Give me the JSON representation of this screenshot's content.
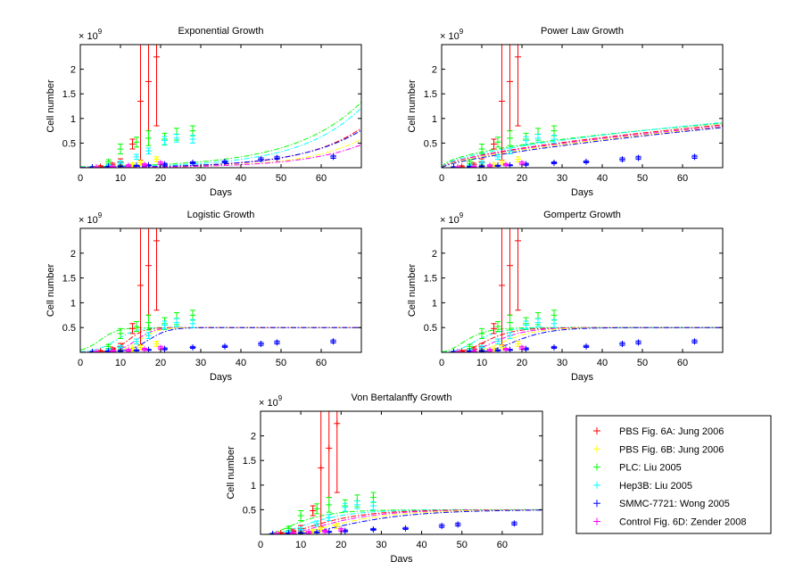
{
  "figure": {
    "series_legend": [
      {
        "label": "PBS Fig. 6A: Jung 2006",
        "color": "#ff0000"
      },
      {
        "label": "PBS Fig. 6B: Jung 2006",
        "color": "#ffff00"
      },
      {
        "label": "PLC: Liu 2005",
        "color": "#00ff00"
      },
      {
        "label": "Hep3B: Liu 2005",
        "color": "#00ffff"
      },
      {
        "label": "SMMC-7721: Wong 2005",
        "color": "#0000ff"
      },
      {
        "label": "Control Fig. 6D: Zender 2008",
        "color": "#ff00ff"
      }
    ],
    "y_multiplier_base": "× 10",
    "y_multiplier_exp": "9"
  },
  "chart_data": [
    {
      "type": "scatter",
      "title": "Exponential Growth",
      "xlabel": "Days",
      "ylabel": "Cell number",
      "xlim": [
        0,
        70
      ],
      "ylim": [
        0,
        2.5
      ],
      "xticks": [
        0,
        10,
        20,
        30,
        40,
        50,
        60
      ],
      "yticks": [
        0.5,
        1,
        1.5,
        2
      ],
      "ytick_labels": [
        "0.5",
        "1",
        "1.5",
        "2"
      ],
      "grid": false,
      "model": "exponential"
    },
    {
      "type": "scatter",
      "title": "Power Law Growth",
      "xlabel": "Days",
      "ylabel": "Cell number",
      "xlim": [
        0,
        70
      ],
      "ylim": [
        0,
        2.5
      ],
      "xticks": [
        0,
        10,
        20,
        30,
        40,
        50,
        60
      ],
      "yticks": [
        0.5,
        1,
        1.5,
        2
      ],
      "ytick_labels": [
        "0.5",
        "1",
        "1.5",
        "2"
      ],
      "grid": false,
      "model": "power"
    },
    {
      "type": "scatter",
      "title": "Logistic Growth",
      "xlabel": "Days",
      "ylabel": "Cell number",
      "xlim": [
        0,
        70
      ],
      "ylim": [
        0,
        2.5
      ],
      "xticks": [
        0,
        10,
        20,
        30,
        40,
        50,
        60
      ],
      "yticks": [
        0.5,
        1,
        1.5,
        2
      ],
      "ytick_labels": [
        "0.5",
        "1",
        "1.5",
        "2"
      ],
      "grid": false,
      "model": "logistic"
    },
    {
      "type": "scatter",
      "title": "Gompertz Growth",
      "xlabel": "Days",
      "ylabel": "Cell number",
      "xlim": [
        0,
        70
      ],
      "ylim": [
        0,
        2.5
      ],
      "xticks": [
        0,
        10,
        20,
        30,
        40,
        50,
        60
      ],
      "yticks": [
        0.5,
        1,
        1.5,
        2
      ],
      "ytick_labels": [
        "0.5",
        "1",
        "1.5",
        "2"
      ],
      "grid": false,
      "model": "gompertz"
    },
    {
      "type": "scatter",
      "title": "Von Bertalanffy Growth",
      "xlabel": "Days",
      "ylabel": "Cell number",
      "xlim": [
        0,
        70
      ],
      "ylim": [
        0,
        2.5
      ],
      "xticks": [
        0,
        10,
        20,
        30,
        40,
        50,
        60
      ],
      "yticks": [
        0.5,
        1,
        1.5,
        2
      ],
      "ytick_labels": [
        "0.5",
        "1",
        "1.5",
        "2"
      ],
      "grid": false,
      "model": "bertalanffy"
    }
  ],
  "observations": [
    {
      "series": "PBS Fig. 6A: Jung 2006",
      "color": "#ff0000",
      "points": [
        [
          5,
          0.02,
          0.02
        ],
        [
          8,
          0.06,
          0.03
        ],
        [
          10,
          0.12,
          0.06
        ],
        [
          13,
          0.48,
          0.1
        ],
        [
          15,
          1.35,
          1.2
        ],
        [
          17,
          1.75,
          1.0
        ],
        [
          19,
          2.25,
          1.4
        ]
      ]
    },
    {
      "series": "PBS Fig. 6B: Jung 2006",
      "color": "#ffff00",
      "points": [
        [
          4,
          0.01,
          0.01
        ],
        [
          7,
          0.02,
          0.01
        ],
        [
          10,
          0.03,
          0.02
        ],
        [
          13,
          0.06,
          0.03
        ],
        [
          15,
          0.1,
          0.04
        ],
        [
          19,
          0.17,
          0.05
        ]
      ]
    },
    {
      "series": "PLC: Liu 2005",
      "color": "#00ff00",
      "points": [
        [
          7,
          0.12,
          0.04
        ],
        [
          10,
          0.38,
          0.1
        ],
        [
          14,
          0.52,
          0.1
        ],
        [
          17,
          0.6,
          0.15
        ],
        [
          21,
          0.58,
          0.12
        ],
        [
          24,
          0.68,
          0.12
        ],
        [
          28,
          0.75,
          0.1
        ]
      ]
    },
    {
      "series": "Hep3B: Liu 2005",
      "color": "#00ffff",
      "points": [
        [
          7,
          0.04,
          0.02
        ],
        [
          10,
          0.1,
          0.03
        ],
        [
          14,
          0.22,
          0.05
        ],
        [
          17,
          0.34,
          0.06
        ],
        [
          21,
          0.55,
          0.08
        ],
        [
          24,
          0.6,
          0.08
        ],
        [
          28,
          0.58,
          0.08
        ]
      ]
    },
    {
      "series": "SMMC-7721: Wong 2005",
      "color": "#0000ff",
      "points": [
        [
          3,
          0.01,
          0.01
        ],
        [
          7,
          0.02,
          0.01
        ],
        [
          10,
          0.03,
          0.01
        ],
        [
          14,
          0.04,
          0.01
        ],
        [
          17,
          0.05,
          0.01
        ],
        [
          21,
          0.07,
          0.02
        ],
        [
          28,
          0.1,
          0.02
        ],
        [
          36,
          0.12,
          0.02
        ],
        [
          45,
          0.17,
          0.03
        ],
        [
          49,
          0.2,
          0.03
        ],
        [
          63,
          0.22,
          0.03
        ]
      ]
    },
    {
      "series": "Control Fig. 6D: Zender 2008",
      "color": "#ff00ff",
      "points": [
        [
          4,
          0.01,
          0.01
        ],
        [
          8,
          0.02,
          0.01
        ],
        [
          12,
          0.04,
          0.02
        ],
        [
          16,
          0.06,
          0.02
        ],
        [
          20,
          0.09,
          0.03
        ]
      ]
    }
  ],
  "model_fits": {
    "exponential": {
      "kind": "exp",
      "curves": [
        {
          "color": "#ff0000",
          "a": 0.006,
          "r": 0.07
        },
        {
          "color": "#ffff00",
          "a": 0.0035,
          "r": 0.073
        },
        {
          "color": "#00ff00",
          "a": 0.02,
          "r": 0.06
        },
        {
          "color": "#00ffff",
          "a": 0.012,
          "r": 0.066
        },
        {
          "color": "#0000ff",
          "a": 0.0075,
          "r": 0.066
        },
        {
          "color": "#ff00ff",
          "a": 0.004,
          "r": 0.068
        }
      ]
    },
    "power": {
      "kind": "pow",
      "curves": [
        {
          "color": "#00ff00",
          "a": 0.095,
          "b": 0.53
        },
        {
          "color": "#00ffff",
          "a": 0.075,
          "b": 0.59
        },
        {
          "color": "#ff0000",
          "a": 0.06,
          "b": 0.63
        },
        {
          "color": "#ff00ff",
          "a": 0.058,
          "b": 0.63
        },
        {
          "color": "#ffff00",
          "a": 0.05,
          "b": 0.66
        },
        {
          "color": "#0000ff",
          "a": 0.04,
          "b": 0.71
        }
      ]
    },
    "logistic": {
      "kind": "logistic",
      "K": 0.5,
      "curves": [
        {
          "color": "#00ff00",
          "t0": 5,
          "r": 0.45
        },
        {
          "color": "#00ffff",
          "t0": 9,
          "r": 0.4
        },
        {
          "color": "#ff0000",
          "t0": 12,
          "r": 0.5
        },
        {
          "color": "#ff00ff",
          "t0": 14,
          "r": 0.45
        },
        {
          "color": "#ffff00",
          "t0": 15,
          "r": 0.45
        },
        {
          "color": "#0000ff",
          "t0": 17,
          "r": 0.4
        }
      ]
    },
    "gompertz": {
      "kind": "gompertz",
      "K": 0.5,
      "curves": [
        {
          "color": "#00ff00",
          "b": 4,
          "c": 0.28
        },
        {
          "color": "#00ffff",
          "b": 6,
          "c": 0.24
        },
        {
          "color": "#ff0000",
          "b": 9,
          "c": 0.22
        },
        {
          "color": "#ff00ff",
          "b": 12,
          "c": 0.2
        },
        {
          "color": "#ffff00",
          "b": 16,
          "c": 0.19
        },
        {
          "color": "#0000ff",
          "b": 22,
          "c": 0.18
        }
      ]
    },
    "bertalanffy": {
      "kind": "bertalanffy",
      "K": 0.5,
      "curves": [
        {
          "color": "#00ff00",
          "k": 0.16,
          "t0": 0
        },
        {
          "color": "#00ffff",
          "k": 0.13,
          "t0": 1
        },
        {
          "color": "#ff0000",
          "k": 0.11,
          "t0": 2
        },
        {
          "color": "#ff00ff",
          "k": 0.1,
          "t0": 3
        },
        {
          "color": "#ffff00",
          "k": 0.09,
          "t0": 4
        },
        {
          "color": "#0000ff",
          "k": 0.08,
          "t0": 5
        }
      ]
    }
  }
}
